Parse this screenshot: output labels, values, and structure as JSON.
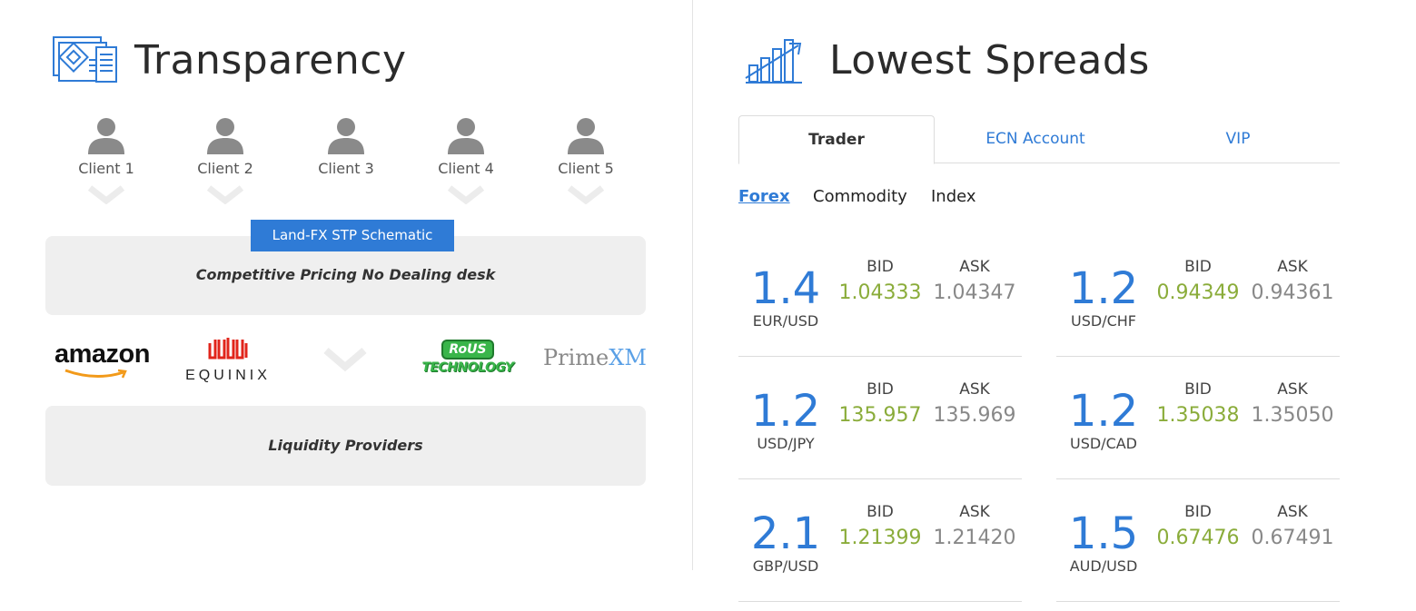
{
  "transparency": {
    "title": "Transparency",
    "clients": [
      "Client 1",
      "Client 2",
      "Client 3",
      "Client 4",
      "Client 5"
    ],
    "schematic_badge": "Land-FX STP Schematic",
    "pricing_box": "Competitive Pricing No Dealing desk",
    "providers": {
      "amazon": "amazon",
      "equinix": "EQUINIX",
      "rous_top": "RoUS",
      "rous_bottom": "TECHNOLOGY",
      "primexm_prime": "Prime",
      "primexm_xm": "XM"
    },
    "liquidity_box": "Liquidity Providers"
  },
  "spreads": {
    "title": "Lowest Spreads",
    "tabs": [
      "Trader",
      "ECN Account",
      "VIP"
    ],
    "active_tab": "Trader",
    "subtabs": [
      "Forex",
      "Commodity",
      "Index"
    ],
    "active_subtab": "Forex",
    "bid_label": "BID",
    "ask_label": "ASK",
    "pairs": [
      {
        "symbol": "EUR/USD",
        "spread": "1.4",
        "bid": "1.04333",
        "ask": "1.04347"
      },
      {
        "symbol": "USD/CHF",
        "spread": "1.2",
        "bid": "0.94349",
        "ask": "0.94361"
      },
      {
        "symbol": "USD/JPY",
        "spread": "1.2",
        "bid": "135.957",
        "ask": "135.969"
      },
      {
        "symbol": "USD/CAD",
        "spread": "1.2",
        "bid": "1.35038",
        "ask": "1.35050"
      },
      {
        "symbol": "GBP/USD",
        "spread": "2.1",
        "bid": "1.21399",
        "ask": "1.21420"
      },
      {
        "symbol": "AUD/USD",
        "spread": "1.5",
        "bid": "0.67476",
        "ask": "0.67491"
      }
    ]
  },
  "colors": {
    "accent_blue": "#2f7bd6",
    "bid_green": "#8aac3a",
    "ask_gray": "#888888",
    "box_gray": "#efefef"
  }
}
